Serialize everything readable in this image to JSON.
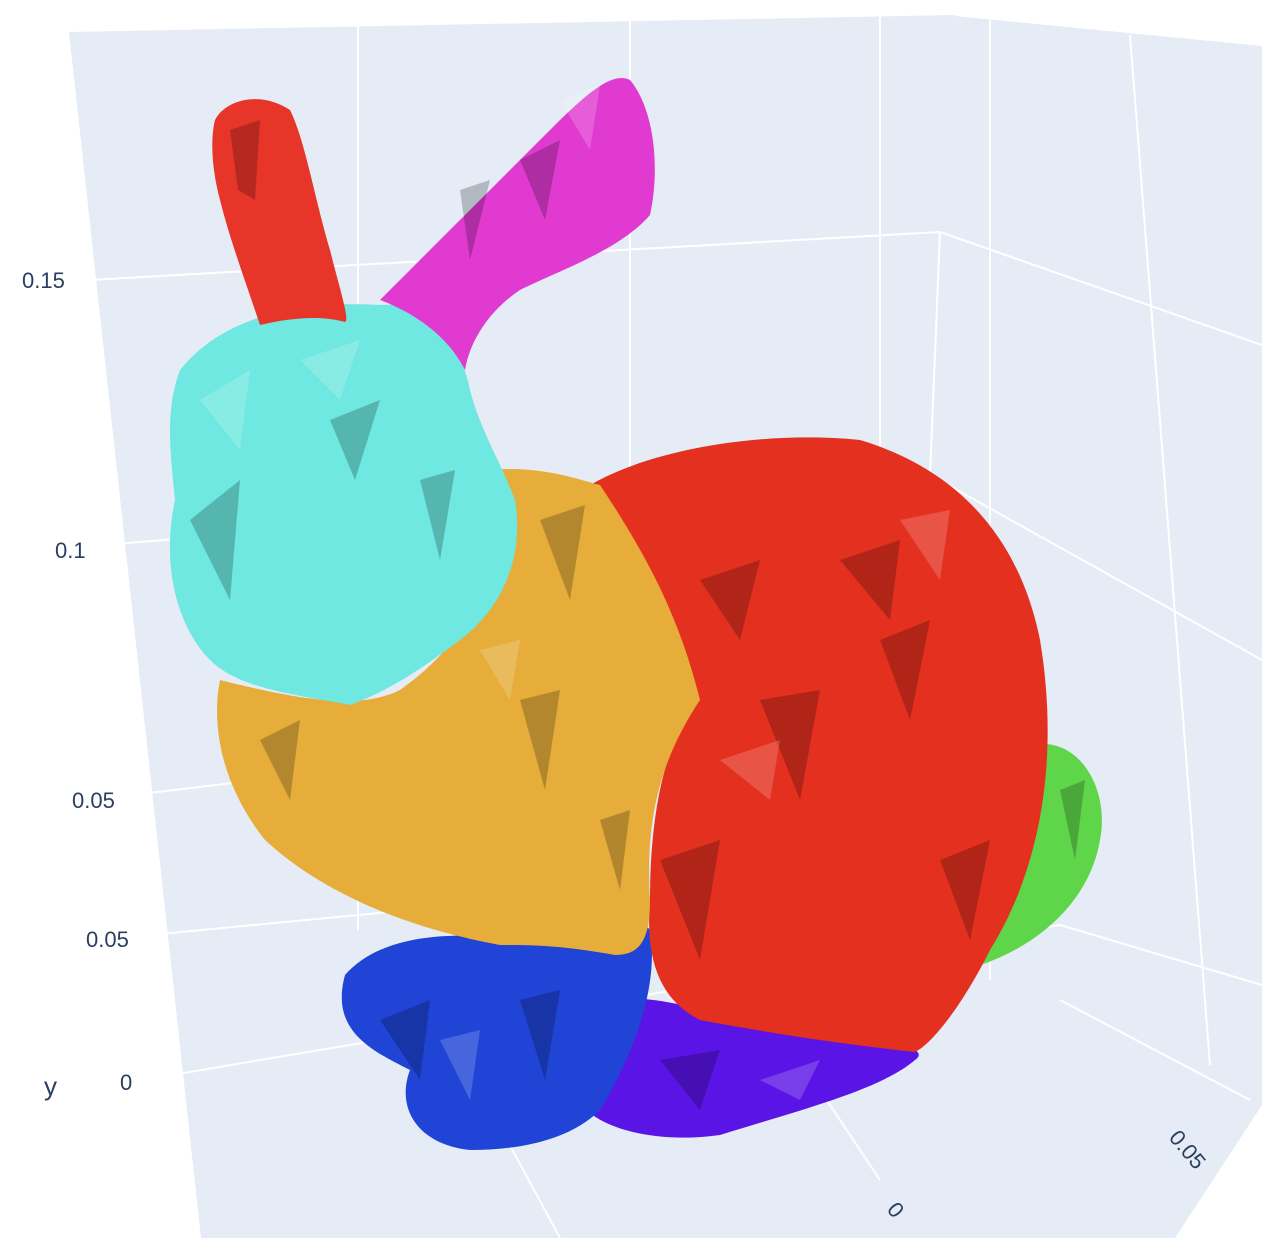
{
  "chart_data": {
    "type": "mesh3d",
    "scene_background": "#e5ecf6",
    "grid": true,
    "legend": false,
    "axes": {
      "y_title": "y",
      "vertical_tick_labels": [
        "0.15",
        "0.1",
        "0.05",
        "0.05",
        "0"
      ],
      "floor_tick_labels": [
        "0",
        "0.05"
      ]
    },
    "segments": [
      {
        "part": "left-ear",
        "color": "#e8352a"
      },
      {
        "part": "right-ear",
        "color": "#e03ad0"
      },
      {
        "part": "head",
        "color": "#6ee8e0"
      },
      {
        "part": "chest",
        "color": "#e6ad3a"
      },
      {
        "part": "body",
        "color": "#e3301f"
      },
      {
        "part": "tail",
        "color": "#5fd64a"
      },
      {
        "part": "front-feet",
        "color": "#1f44d6"
      },
      {
        "part": "hind-foot",
        "color": "#5a14e6"
      }
    ]
  }
}
